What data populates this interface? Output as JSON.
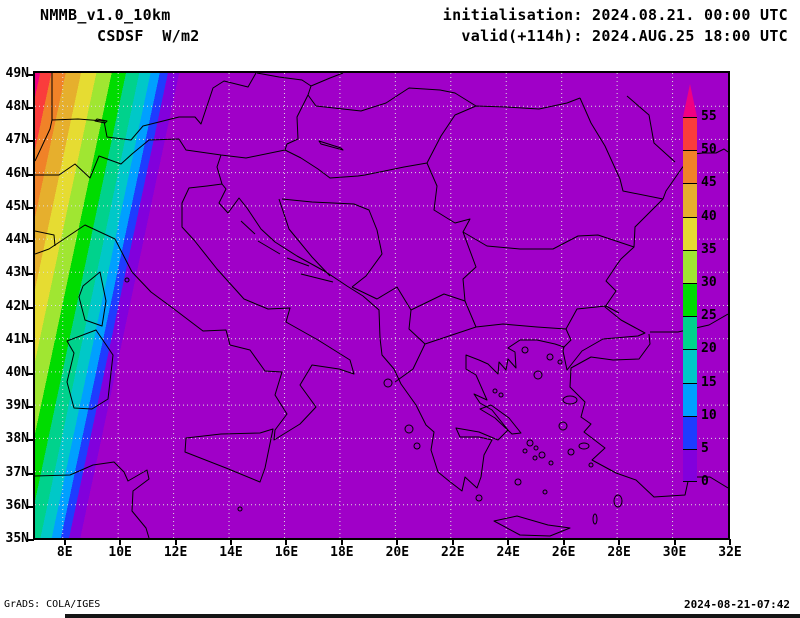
{
  "header": {
    "model": "NMMB_v1.0_10km",
    "variable": "CSDSF  W/m2",
    "init": "initialisation: 2024.08.21. 00:00 UTC",
    "valid": "valid(+114h): 2024.AUG.25 18:00 UTC"
  },
  "footer": {
    "credit": "GrADS: COLA/IGES",
    "generated": "2024-08-21-07:42"
  },
  "map": {
    "extent": {
      "lon_min": 7,
      "lon_max": 32,
      "lat_min": 35,
      "lat_max": 49
    },
    "lat_labels": [
      {
        "label": "49N",
        "lat": 49
      },
      {
        "label": "48N",
        "lat": 48
      },
      {
        "label": "47N",
        "lat": 47
      },
      {
        "label": "46N",
        "lat": 46
      },
      {
        "label": "45N",
        "lat": 45
      },
      {
        "label": "44N",
        "lat": 44
      },
      {
        "label": "43N",
        "lat": 43
      },
      {
        "label": "42N",
        "lat": 42
      },
      {
        "label": "41N",
        "lat": 41
      },
      {
        "label": "40N",
        "lat": 40
      },
      {
        "label": "39N",
        "lat": 39
      },
      {
        "label": "38N",
        "lat": 38
      },
      {
        "label": "37N",
        "lat": 37
      },
      {
        "label": "36N",
        "lat": 36
      },
      {
        "label": "35N",
        "lat": 35
      }
    ],
    "lon_labels": [
      {
        "label": "8E",
        "lon": 8
      },
      {
        "label": "10E",
        "lon": 10
      },
      {
        "label": "12E",
        "lon": 12
      },
      {
        "label": "14E",
        "lon": 14
      },
      {
        "label": "16E",
        "lon": 16
      },
      {
        "label": "18E",
        "lon": 18
      },
      {
        "label": "20E",
        "lon": 20
      },
      {
        "label": "22E",
        "lon": 22
      },
      {
        "label": "24E",
        "lon": 24
      },
      {
        "label": "26E",
        "lon": 26
      },
      {
        "label": "28E",
        "lon": 28
      },
      {
        "label": "30E",
        "lon": 30
      },
      {
        "label": "32E",
        "lon": 32
      }
    ],
    "grid": {
      "lat_lines": [
        36,
        37,
        38,
        39,
        40,
        41,
        42,
        43,
        44,
        45,
        46,
        47,
        48
      ],
      "lon_lines": [
        8,
        10,
        12,
        14,
        16,
        18,
        20,
        22,
        24,
        26,
        28,
        30
      ],
      "color": "#DEDEDE"
    },
    "coastline_color": "#000000"
  },
  "colorbar": {
    "unit": "W/m2",
    "levels": [
      "55",
      "50",
      "45",
      "40",
      "35",
      "30",
      "25",
      "20",
      "15",
      "10",
      "5",
      "0"
    ],
    "segment_colors_top_to_bottom": [
      "#FA3C3C",
      "#F08228",
      "#E6AF2D",
      "#E6DC32",
      "#A0E632",
      "#00DC00",
      "#00D28C",
      "#00C8C8",
      "#00A0FF",
      "#1E3CFF",
      "#8200DC"
    ],
    "over_color": "#F00082",
    "under_color": "#A000C8"
  },
  "field": {
    "background_color": "#A000C8",
    "gradient_angle_deg": 102,
    "bands": [
      {
        "color": "#F00082",
        "to": 5
      },
      {
        "color": "#FA3C3C",
        "to": 16
      },
      {
        "color": "#F08228",
        "to": 30
      },
      {
        "color": "#E6AF2D",
        "to": 45
      },
      {
        "color": "#E6DC32",
        "to": 60
      },
      {
        "color": "#A0E632",
        "to": 75
      },
      {
        "color": "#00DC00",
        "to": 89
      },
      {
        "color": "#00D28C",
        "to": 102
      },
      {
        "color": "#00C8C8",
        "to": 113
      },
      {
        "color": "#00A0FF",
        "to": 122
      },
      {
        "color": "#1E3CFF",
        "to": 130
      },
      {
        "color": "#8200DC",
        "to": 141
      },
      {
        "color": "#A000C8",
        "to": -1
      }
    ]
  }
}
